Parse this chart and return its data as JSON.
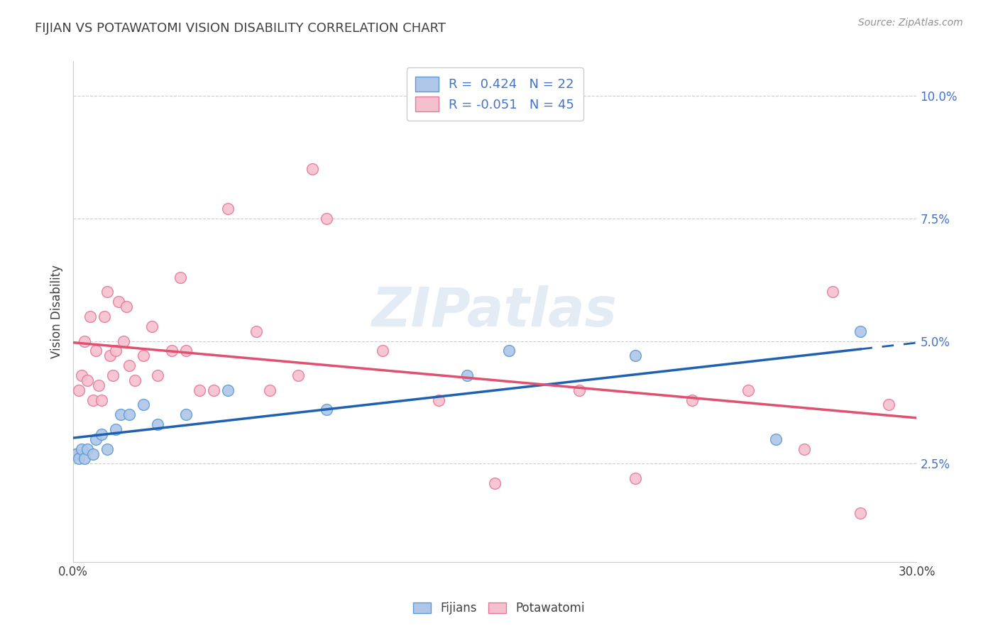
{
  "title": "FIJIAN VS POTAWATOMI VISION DISABILITY CORRELATION CHART",
  "source": "Source: ZipAtlas.com",
  "ylabel": "Vision Disability",
  "x_min": 0.0,
  "x_max": 0.3,
  "y_min": 0.005,
  "y_max": 0.107,
  "x_ticks": [
    0.0,
    0.05,
    0.1,
    0.15,
    0.2,
    0.25,
    0.3
  ],
  "y_ticks": [
    0.025,
    0.05,
    0.075,
    0.1
  ],
  "y_tick_labels": [
    "2.5%",
    "5.0%",
    "7.5%",
    "10.0%"
  ],
  "fijian_color": "#aec6e8",
  "fijian_edge_color": "#5b9bd5",
  "potawatomi_color": "#f5c0ce",
  "potawatomi_edge_color": "#e8789a",
  "fijian_line_color": "#2060b0",
  "potawatomi_line_color": "#e05070",
  "R_fijian": 0.424,
  "N_fijian": 22,
  "R_potawatomi": -0.051,
  "N_potawatomi": 45,
  "legend_text_color": "#4472c4",
  "title_color": "#404040",
  "source_color": "#909090",
  "fijians_x": [
    0.001,
    0.002,
    0.003,
    0.004,
    0.005,
    0.007,
    0.008,
    0.01,
    0.012,
    0.015,
    0.017,
    0.02,
    0.025,
    0.03,
    0.04,
    0.055,
    0.09,
    0.14,
    0.155,
    0.2,
    0.25,
    0.28
  ],
  "fijians_y": [
    0.027,
    0.026,
    0.028,
    0.026,
    0.028,
    0.027,
    0.03,
    0.031,
    0.028,
    0.032,
    0.035,
    0.035,
    0.037,
    0.033,
    0.035,
    0.04,
    0.036,
    0.043,
    0.048,
    0.047,
    0.03,
    0.052
  ],
  "potawatomi_x": [
    0.001,
    0.002,
    0.003,
    0.004,
    0.005,
    0.006,
    0.007,
    0.008,
    0.009,
    0.01,
    0.011,
    0.012,
    0.013,
    0.014,
    0.015,
    0.016,
    0.018,
    0.019,
    0.02,
    0.022,
    0.025,
    0.028,
    0.03,
    0.035,
    0.038,
    0.04,
    0.045,
    0.05,
    0.055,
    0.065,
    0.07,
    0.08,
    0.085,
    0.09,
    0.11,
    0.13,
    0.15,
    0.18,
    0.2,
    0.22,
    0.24,
    0.26,
    0.27,
    0.28,
    0.29
  ],
  "potawatomi_y": [
    0.027,
    0.04,
    0.043,
    0.05,
    0.042,
    0.055,
    0.038,
    0.048,
    0.041,
    0.038,
    0.055,
    0.06,
    0.047,
    0.043,
    0.048,
    0.058,
    0.05,
    0.057,
    0.045,
    0.042,
    0.047,
    0.053,
    0.043,
    0.048,
    0.063,
    0.048,
    0.04,
    0.04,
    0.077,
    0.052,
    0.04,
    0.043,
    0.085,
    0.075,
    0.048,
    0.038,
    0.021,
    0.04,
    0.022,
    0.038,
    0.04,
    0.028,
    0.06,
    0.015,
    0.037
  ]
}
